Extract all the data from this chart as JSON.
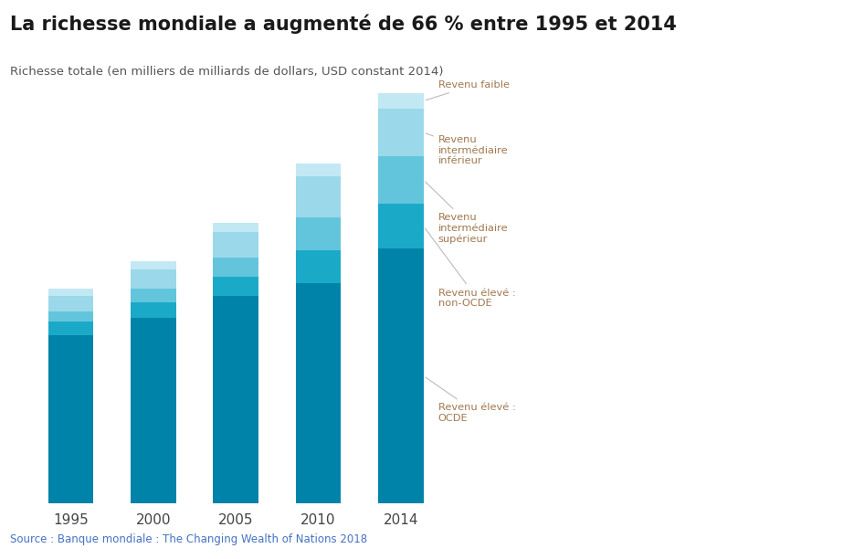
{
  "title": "La richesse mondiale a augmenté de 66 % entre 1995 et 2014",
  "subtitle": "Richesse totale (en milliers de milliards de dollars, USD constant 2014)",
  "source": "Source : Banque mondiale : The Changing Wealth of Nations 2018",
  "years": [
    "1995",
    "2000",
    "2005",
    "2010",
    "2014"
  ],
  "ann_labels": [
    "Revenu faible",
    "Revenu\nintermédiaire\ninférieur",
    "Revenu\nintermédiaire\nsupérieur",
    "Revenu élevé :\nnon-OCDE",
    "Revenu élevé :\nOCDE"
  ],
  "colors": [
    "#0083a9",
    "#1aaac8",
    "#63c5dc",
    "#9ad8ea",
    "#c2e8f4"
  ],
  "data": {
    "1995": [
      195,
      15,
      12,
      18,
      8
    ],
    "2000": [
      215,
      18,
      16,
      22,
      9
    ],
    "2005": [
      240,
      22,
      22,
      30,
      11
    ],
    "2010": [
      255,
      38,
      38,
      48,
      14
    ],
    "2014": [
      295,
      52,
      55,
      55,
      18
    ]
  },
  "background_color": "#ffffff",
  "annotation_color": "#a07850",
  "title_fontsize": 15,
  "subtitle_fontsize": 9.5,
  "source_color": "#4472c4",
  "source_fontsize": 8.5,
  "tick_fontsize": 11
}
